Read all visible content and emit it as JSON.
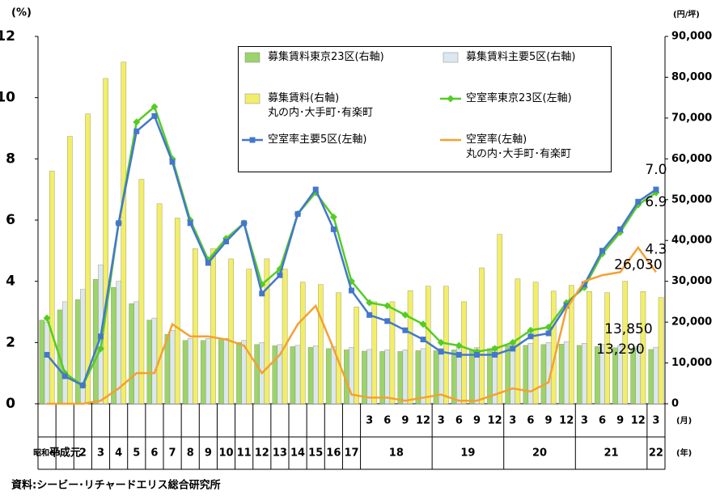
{
  "chart_data": {
    "type": "combo",
    "y_unit": "(%)",
    "y2_unit": "(円/坪)",
    "month_unit": "(月)",
    "year_unit": "(年)",
    "source": "資料:シービー･リチャードエリス総合研究所",
    "categories": [
      null,
      null,
      null,
      null,
      null,
      null,
      null,
      null,
      null,
      null,
      null,
      null,
      null,
      null,
      null,
      null,
      null,
      null,
      "3",
      "6",
      "9",
      "12",
      "3",
      "6",
      "9",
      "12",
      "3",
      "6",
      "9",
      "12",
      "3",
      "6",
      "9",
      "12",
      "3"
    ],
    "year_labels": [
      "昭和63",
      "平成元",
      "2",
      "3",
      "4",
      "5",
      "6",
      "7",
      "8",
      "9",
      "10",
      "11",
      "12",
      "13",
      "14",
      "15",
      "16",
      "17",
      "18",
      null,
      null,
      null,
      "19",
      null,
      null,
      null,
      "20",
      null,
      null,
      null,
      "21",
      null,
      null,
      null,
      "22"
    ],
    "ylim": [
      0,
      12
    ],
    "yticks": [
      0,
      2,
      4,
      6,
      8,
      10,
      12
    ],
    "y2lim": [
      0,
      90000
    ],
    "y2ticks": [
      0,
      {
        "value": 10000,
        "label": "10,000"
      },
      {
        "value": 20000,
        "label": "20,000"
      },
      {
        "value": 30000,
        "label": "30,000"
      },
      {
        "value": 40000,
        "label": "40,000"
      },
      {
        "value": 50000,
        "label": "50,000"
      },
      {
        "value": 60000,
        "label": "60,000"
      },
      {
        "value": 70000,
        "label": "70,000"
      },
      {
        "value": 80000,
        "label": "80,000"
      },
      {
        "value": 90000,
        "label": "90,000"
      }
    ],
    "series": [
      {
        "name": "募集賃料東京23区(右軸)",
        "type": "bar",
        "axis": "y2",
        "color": "#9bd46a",
        "values": [
          20500,
          23000,
          25500,
          30500,
          28500,
          24500,
          20500,
          17000,
          15500,
          15500,
          16000,
          15000,
          14500,
          14200,
          14000,
          13800,
          13500,
          13200,
          12900,
          12800,
          12800,
          13000,
          13000,
          13200,
          13300,
          13500,
          14200,
          14300,
          14500,
          14600,
          14300,
          14000,
          13700,
          13500,
          13290
        ],
        "value_labels": [
          null,
          null,
          null,
          null,
          null,
          null,
          null,
          null,
          null,
          null,
          null,
          null,
          null,
          null,
          null,
          null,
          null,
          null,
          null,
          null,
          null,
          null,
          null,
          null,
          null,
          null,
          null,
          null,
          null,
          null,
          null,
          null,
          null,
          null,
          "13,290"
        ]
      },
      {
        "name": "募集賃料主要5区(右軸)",
        "type": "bar",
        "axis": "y2",
        "color": "#dce8f0",
        "values": [
          20000,
          25000,
          28000,
          34000,
          30000,
          25000,
          21000,
          18000,
          16000,
          16000,
          16000,
          15500,
          15000,
          14500,
          14300,
          14200,
          14000,
          13800,
          13300,
          13200,
          13200,
          13500,
          13600,
          13800,
          13800,
          14000,
          14600,
          14800,
          15000,
          15200,
          14800,
          14500,
          14200,
          14000,
          13850
        ],
        "value_labels": [
          null,
          null,
          null,
          null,
          null,
          null,
          null,
          null,
          null,
          null,
          null,
          null,
          null,
          null,
          null,
          null,
          null,
          null,
          null,
          null,
          null,
          null,
          null,
          null,
          null,
          null,
          null,
          null,
          null,
          null,
          null,
          null,
          null,
          null,
          "13,850"
        ]
      },
      {
        "name": "募集賃料(右軸)\n丸の内･大手町･有楽町",
        "type": "bar",
        "axis": "y2",
        "color": "#f2ee6a",
        "values": [
          57000,
          65500,
          71000,
          79700,
          83700,
          55000,
          49000,
          45500,
          38000,
          38000,
          35500,
          33000,
          35500,
          33000,
          29800,
          29200,
          27200,
          23700,
          25000,
          25000,
          27700,
          28800,
          28800,
          25000,
          33300,
          41500,
          30600,
          29800,
          27600,
          29000,
          27500,
          27200,
          30000,
          27500,
          26030
        ],
        "value_labels": [
          null,
          null,
          null,
          null,
          null,
          null,
          null,
          null,
          null,
          null,
          null,
          null,
          null,
          null,
          null,
          null,
          null,
          null,
          null,
          null,
          null,
          null,
          null,
          null,
          null,
          null,
          null,
          null,
          null,
          null,
          null,
          null,
          null,
          null,
          "26,030"
        ]
      },
      {
        "name": "空室率東京23区(左軸)",
        "type": "line",
        "marker": "diamond",
        "color": "#55cc22",
        "values": [
          2.8,
          1.0,
          0.6,
          1.8,
          5.9,
          9.2,
          9.7,
          8.0,
          6.0,
          4.7,
          5.4,
          5.9,
          3.9,
          4.4,
          6.2,
          6.9,
          6.1,
          4.0,
          3.3,
          3.2,
          2.9,
          2.6,
          2.0,
          1.9,
          1.7,
          1.8,
          2.0,
          2.4,
          2.5,
          3.3,
          3.8,
          4.9,
          5.6,
          6.5,
          6.9
        ],
        "value_labels": [
          null,
          null,
          null,
          null,
          null,
          null,
          null,
          null,
          null,
          null,
          null,
          null,
          null,
          null,
          null,
          null,
          null,
          null,
          null,
          null,
          null,
          null,
          null,
          null,
          null,
          null,
          null,
          null,
          null,
          null,
          null,
          null,
          null,
          null,
          "6.9"
        ]
      },
      {
        "name": "空室率主要5区(左軸)",
        "type": "line",
        "marker": "square",
        "color": "#4477cc",
        "values": [
          1.6,
          0.9,
          0.6,
          2.2,
          5.9,
          8.9,
          9.4,
          7.9,
          5.9,
          4.6,
          5.3,
          5.9,
          3.6,
          4.2,
          6.2,
          7.0,
          5.7,
          3.7,
          2.9,
          2.7,
          2.4,
          2.1,
          1.7,
          1.6,
          1.6,
          1.6,
          1.8,
          2.2,
          2.3,
          3.2,
          3.9,
          5.0,
          5.7,
          6.6,
          7.0
        ],
        "value_labels": [
          null,
          null,
          null,
          null,
          null,
          null,
          null,
          null,
          null,
          null,
          null,
          null,
          null,
          null,
          null,
          null,
          null,
          null,
          null,
          null,
          null,
          null,
          null,
          null,
          null,
          null,
          null,
          null,
          null,
          null,
          null,
          null,
          null,
          null,
          "7.0"
        ]
      },
      {
        "name": "空室率(左軸)\n丸の内･大手町･有楽町",
        "type": "line",
        "marker": "none",
        "color": "#f5a030",
        "values": [
          0.0,
          0.0,
          0.0,
          0.1,
          0.5,
          1.0,
          1.0,
          2.6,
          2.2,
          2.2,
          2.1,
          1.9,
          1.0,
          1.6,
          2.6,
          3.2,
          1.8,
          0.3,
          0.2,
          0.2,
          0.1,
          0.2,
          0.3,
          0.1,
          0.1,
          0.3,
          0.5,
          0.4,
          0.7,
          3.1,
          4.0,
          4.2,
          4.3,
          5.1,
          4.3
        ],
        "value_labels": [
          null,
          null,
          null,
          null,
          null,
          null,
          null,
          null,
          null,
          null,
          null,
          null,
          null,
          null,
          null,
          null,
          null,
          null,
          null,
          null,
          null,
          null,
          null,
          null,
          null,
          null,
          null,
          null,
          null,
          null,
          null,
          null,
          null,
          null,
          "4.3"
        ]
      }
    ]
  }
}
